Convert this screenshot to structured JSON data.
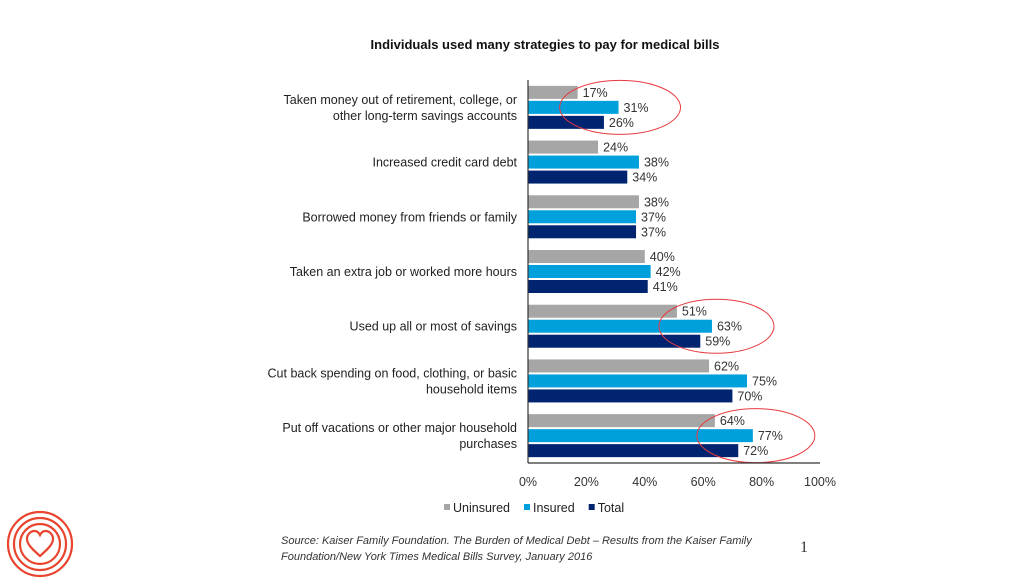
{
  "chart_data": {
    "type": "bar",
    "orientation": "horizontal",
    "title": "Individuals used many strategies to pay for medical bills",
    "categories": [
      [
        "Taken money out of retirement, college, or",
        "other long-term savings accounts"
      ],
      [
        "Increased credit card debt"
      ],
      [
        "Borrowed money from friends or family"
      ],
      [
        "Taken an extra job or worked more hours"
      ],
      [
        "Used up all or most of savings"
      ],
      [
        "Cut back spending on food, clothing, or basic",
        "household items"
      ],
      [
        "Put off vacations or other major household",
        "purchases"
      ]
    ],
    "series": [
      {
        "name": "Uninsured",
        "color": "#a6a6a6",
        "values": [
          17,
          24,
          38,
          40,
          51,
          62,
          64
        ]
      },
      {
        "name": "Insured",
        "color": "#00a0dc",
        "values": [
          31,
          38,
          37,
          42,
          63,
          75,
          77
        ]
      },
      {
        "name": "Total",
        "color": "#002470",
        "values": [
          26,
          34,
          37,
          41,
          59,
          70,
          72
        ]
      }
    ],
    "xlim": [
      0,
      100
    ],
    "xticks": [
      "0%",
      "20%",
      "40%",
      "60%",
      "80%",
      "100%"
    ],
    "value_suffix": "%",
    "legend_position": "bottom",
    "grid": false,
    "highlighted_categories": [
      0,
      4,
      6
    ],
    "highlight_color": "#e8393f"
  },
  "footer": {
    "source_line1": "Source: Kaiser Family Foundation. The Burden of Medical Debt – Results from the Kaiser Family",
    "source_line2": "Foundation/New York Times Medical Bills Survey, January 2016",
    "page_number": "1"
  },
  "logo": {
    "name": "heart-logo-icon",
    "color": "#e8452f"
  }
}
